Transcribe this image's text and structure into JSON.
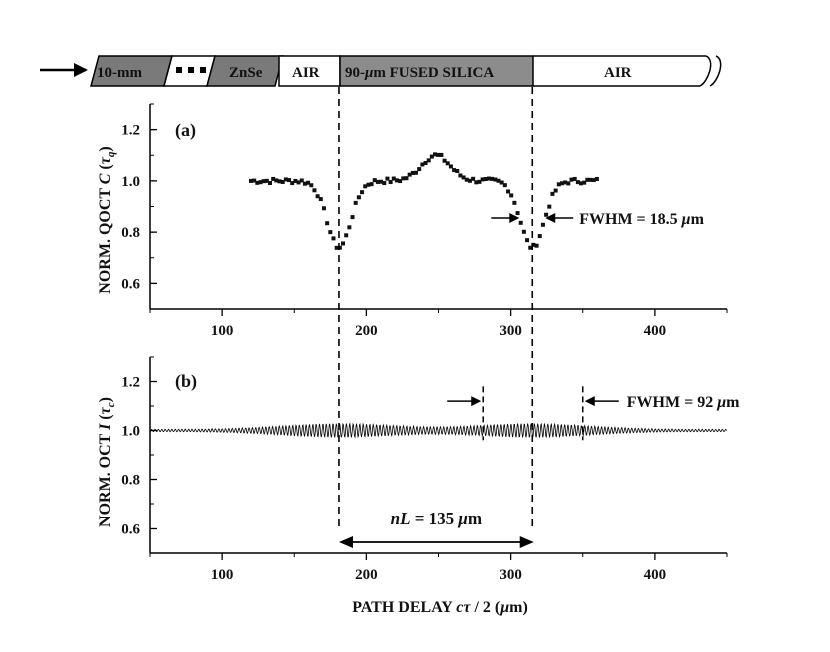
{
  "schematic": {
    "segments": [
      {
        "label": "10-mm",
        "fill": "#7a7a7a"
      },
      {
        "label": "",
        "fill": "#ffffff"
      },
      {
        "label": "ZnSe",
        "fill": "#7a7a7a"
      },
      {
        "label": "AIR",
        "fill": "#ffffff"
      },
      {
        "label": "90-",
        "label_mu": "μ",
        "label_rest": "m FUSED SILICA",
        "fill": "#8c8c8c"
      },
      {
        "label": "AIR",
        "fill": "#ffffff"
      }
    ]
  },
  "chart_data": [
    {
      "type": "scatter",
      "panel_label": "(a)",
      "ylabel_text": "NORM. QOCT",
      "ylabel_var": "C",
      "ylabel_arg": "τ",
      "ylabel_sub": "q",
      "xlim": [
        50,
        450
      ],
      "ylim": [
        0.5,
        1.3
      ],
      "xticks": [
        100,
        200,
        300,
        400
      ],
      "yticks": [
        0.6,
        0.8,
        1.0,
        1.2
      ],
      "x_range": [
        120,
        360
      ],
      "dips": [
        {
          "center": 181,
          "depth": 0.26,
          "width": 11
        },
        {
          "center": 315,
          "depth": 0.26,
          "width": 11
        }
      ],
      "bump": {
        "center": 248,
        "height": 0.1,
        "width": 14
      },
      "baseline": 1.0,
      "annotation": {
        "text": "FWHM = 18.5 ",
        "mu": "μ",
        "unit": "m",
        "x1": 306,
        "x2": 324,
        "y": 0.855
      }
    },
    {
      "type": "line",
      "panel_label": "(b)",
      "ylabel_text": "NORM. OCT",
      "ylabel_var": "I",
      "ylabel_arg": "τ",
      "ylabel_sub": "c",
      "xlim": [
        50,
        450
      ],
      "ylim": [
        0.5,
        1.3
      ],
      "xticks": [
        100,
        200,
        300,
        400
      ],
      "yticks": [
        0.6,
        0.8,
        1.0,
        1.2
      ],
      "x_range": [
        50,
        450
      ],
      "envelopes": [
        {
          "center": 181,
          "amp": 0.024,
          "fwhm": 92
        },
        {
          "center": 315,
          "amp": 0.024,
          "fwhm": 92
        }
      ],
      "baseline": 1.0,
      "annotation": {
        "text": "FWHM = 92 ",
        "mu": "μ",
        "unit": "m",
        "x1": 281,
        "x2": 350,
        "y": 1.12
      },
      "nl_annotation": {
        "text_italic": "nL",
        "text": " = 135 ",
        "mu": "μ",
        "unit": "m",
        "x1": 181,
        "x2": 316,
        "y": 0.545
      },
      "xlabel_text": "PATH DELAY ",
      "xlabel_var": "cτ",
      "xlabel_rest": " / 2 (",
      "xlabel_mu": "μ",
      "xlabel_end": "m)"
    }
  ]
}
